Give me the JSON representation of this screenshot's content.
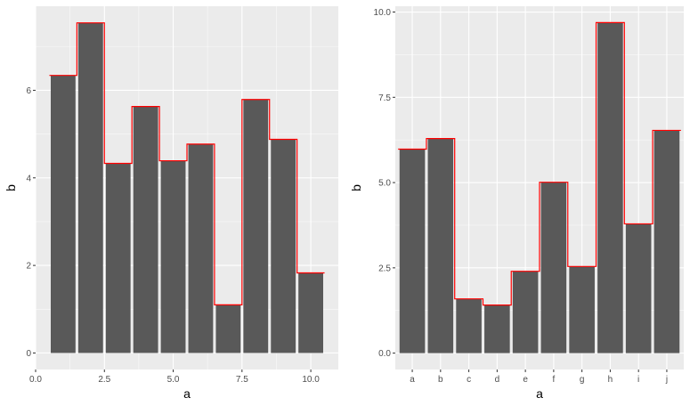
{
  "chart_data": [
    {
      "type": "bar",
      "xlabel": "a",
      "ylabel": "b",
      "x": [
        1,
        2,
        3,
        4,
        5,
        6,
        7,
        8,
        9,
        10
      ],
      "values": [
        6.34,
        7.54,
        4.33,
        5.63,
        4.39,
        4.77,
        1.1,
        5.79,
        4.88,
        1.83
      ],
      "xlim": [
        0,
        11
      ],
      "ylim": [
        -0.377,
        7.92
      ],
      "xticks": [
        0,
        2.5,
        5,
        7.5,
        10
      ],
      "xtick_labels": [
        "0.0",
        "2.5",
        "5.0",
        "7.5",
        "10.0"
      ],
      "yticks": [
        0,
        2,
        4,
        6
      ],
      "ytick_labels": [
        "0",
        "2",
        "4",
        "6"
      ],
      "overlay": "step",
      "grid": true
    },
    {
      "type": "bar",
      "xlabel": "a",
      "ylabel": "b",
      "categories": [
        "a",
        "b",
        "c",
        "d",
        "e",
        "f",
        "g",
        "h",
        "i",
        "j"
      ],
      "values": [
        5.98,
        6.29,
        1.59,
        1.41,
        2.4,
        5.01,
        2.54,
        9.69,
        3.79,
        6.53
      ],
      "xlim": [
        0.4,
        10.6
      ],
      "ylim": [
        -0.48,
        10.17
      ],
      "yticks": [
        0,
        2.5,
        5,
        7.5,
        10
      ],
      "ytick_labels": [
        "0.0",
        "2.5",
        "5.0",
        "7.5",
        "10.0"
      ],
      "overlay": "step",
      "grid": true
    }
  ],
  "colors": {
    "panel": "#ebebeb",
    "bar": "#595959",
    "step": "#ff0000",
    "grid": "#ffffff"
  }
}
